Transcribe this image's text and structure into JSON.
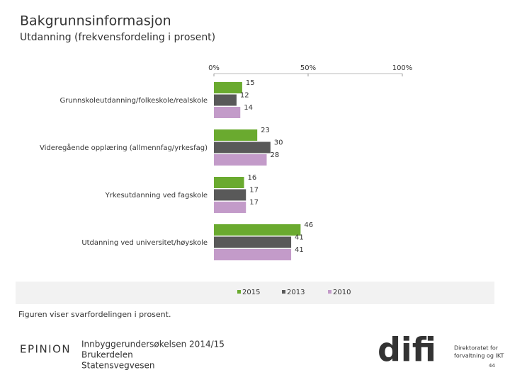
{
  "chart_data": {
    "type": "bar",
    "orientation": "horizontal",
    "title": "Bakgrunnsinformasjon",
    "subtitle": "Utdanning (frekvensfordeling i prosent)",
    "categories": [
      "Grunnskoleutdanning/folkeskole/realskole",
      "Videregående opplæring (allmennfag/yrkesfag)",
      "Yrkesutdanning ved fagskole",
      "Utdanning ved universitet/høyskole"
    ],
    "series": [
      {
        "name": "2015",
        "color": "#6aaa2f",
        "values": [
          15,
          23,
          16,
          46
        ]
      },
      {
        "name": "2013",
        "color": "#595959",
        "values": [
          12,
          30,
          17,
          41
        ]
      },
      {
        "name": "2010",
        "color": "#c39bc9",
        "values": [
          14,
          28,
          17,
          41
        ]
      }
    ],
    "xlim": [
      0,
      100
    ],
    "xticks": [
      {
        "value": 0,
        "label": "0%"
      },
      {
        "value": 50,
        "label": "50%"
      },
      {
        "value": 100,
        "label": "100%"
      }
    ],
    "legend": "bottom",
    "note": "Figuren viser svarfordelingen i prosent."
  },
  "footer": {
    "brand": "EPINION",
    "lines": [
      "Innbyggerundersøkelsen 2014/15",
      "Brukerdelen",
      "Statensvegvesen"
    ],
    "logo": "difi",
    "logo_text": [
      "Direktoratet for",
      "forvaltning og IKT"
    ],
    "page": "44"
  }
}
